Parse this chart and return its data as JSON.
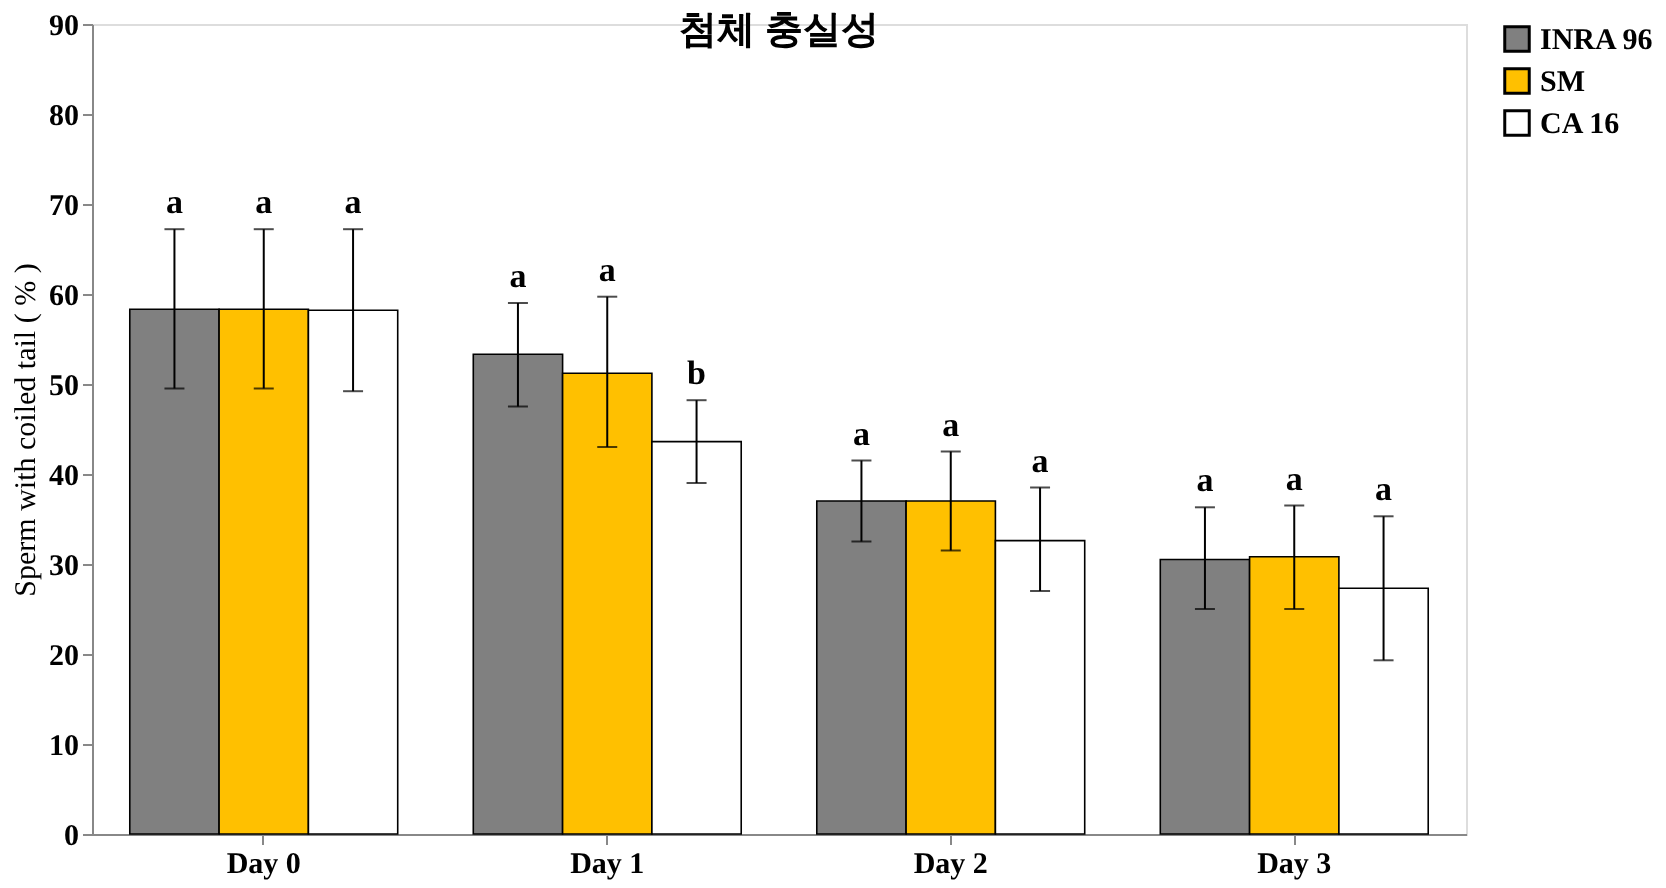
{
  "chart_data": {
    "type": "bar",
    "title": "첨체 충실성",
    "ylabel": "Sperm with coiled tail ( % )",
    "categories": [
      "Day 0",
      "Day 1",
      "Day 2",
      "Day 3"
    ],
    "series": [
      {
        "name": "INRA 96",
        "color": "#808080",
        "value_labels": [
          "a",
          "a",
          "a",
          "a"
        ],
        "values": [
          58.3,
          53.3,
          37.0,
          30.5
        ],
        "errors": [
          [
            49.5,
            67.2
          ],
          [
            47.5,
            59.0
          ],
          [
            32.5,
            41.5
          ],
          [
            25.0,
            36.3
          ]
        ]
      },
      {
        "name": "SM",
        "color": "#ffc000",
        "value_labels": [
          "a",
          "a",
          "a",
          "a"
        ],
        "values": [
          58.3,
          51.2,
          37.0,
          30.8
        ],
        "errors": [
          [
            49.5,
            67.2
          ],
          [
            43.0,
            59.7
          ],
          [
            31.5,
            42.5
          ],
          [
            25.0,
            36.5
          ]
        ]
      },
      {
        "name": "CA 16",
        "color": "#ffffff",
        "value_labels": [
          "a",
          "b",
          "a",
          "a"
        ],
        "values": [
          58.2,
          43.6,
          32.6,
          27.3
        ],
        "errors": [
          [
            49.2,
            67.2
          ],
          [
            39.0,
            48.2
          ],
          [
            27.0,
            38.5
          ],
          [
            19.3,
            35.3
          ]
        ]
      }
    ],
    "ylim": [
      0,
      90
    ],
    "yticks": [
      0,
      10,
      20,
      30,
      40,
      50,
      60,
      70,
      80,
      90
    ],
    "grid": false,
    "legend": "right"
  }
}
